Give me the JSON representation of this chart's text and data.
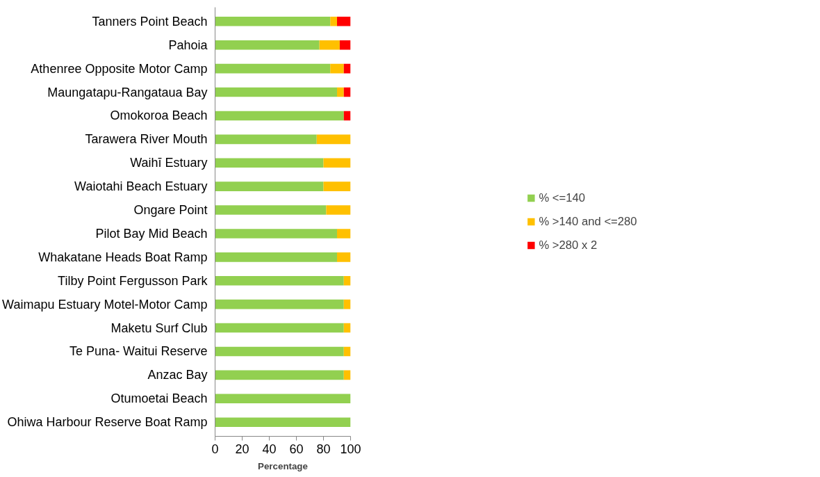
{
  "chart_data": {
    "type": "bar",
    "orientation": "horizontal",
    "stacked": true,
    "xlabel": "Percentage",
    "categories": [
      "Tanners Point Beach",
      "Pahoia",
      "Athenree Opposite Motor Camp",
      "Maungatapu-Rangataua Bay",
      "Omokoroa Beach",
      "Tarawera River Mouth",
      "Waihī Estuary",
      "Waiotahi Beach Estuary",
      "Ongare Point",
      "Pilot Bay Mid Beach",
      "Whakatane Heads Boat Ramp",
      "Tilby Point Fergusson Park",
      "Waimapu Estuary Motel-Motor Camp",
      "Maketu Surf Club",
      "Te Puna- Waitui Reserve",
      "Anzac Bay",
      "Otumoetai Beach",
      "Ohiwa Harbour Reserve Boat Ramp"
    ],
    "series": [
      {
        "name": "% <=140",
        "color": "#92d050",
        "values": [
          85,
          77,
          85,
          90,
          95,
          75,
          80,
          80,
          82,
          90,
          90,
          95,
          95,
          95,
          95,
          95,
          100,
          100
        ]
      },
      {
        "name": "% >140 and <=280",
        "color": "#ffc000",
        "values": [
          5,
          15,
          10,
          5,
          0,
          25,
          20,
          20,
          18,
          10,
          10,
          5,
          5,
          5,
          5,
          5,
          0,
          0
        ]
      },
      {
        "name": "% >280 x 2",
        "color": "#ff0000",
        "values": [
          10,
          8,
          5,
          5,
          5,
          0,
          0,
          0,
          0,
          0,
          0,
          0,
          0,
          0,
          0,
          0,
          0,
          0
        ]
      }
    ],
    "xlim": [
      0,
      100
    ],
    "xticks": [
      0,
      20,
      40,
      60,
      80,
      100
    ],
    "grid": false,
    "legend": "right"
  }
}
